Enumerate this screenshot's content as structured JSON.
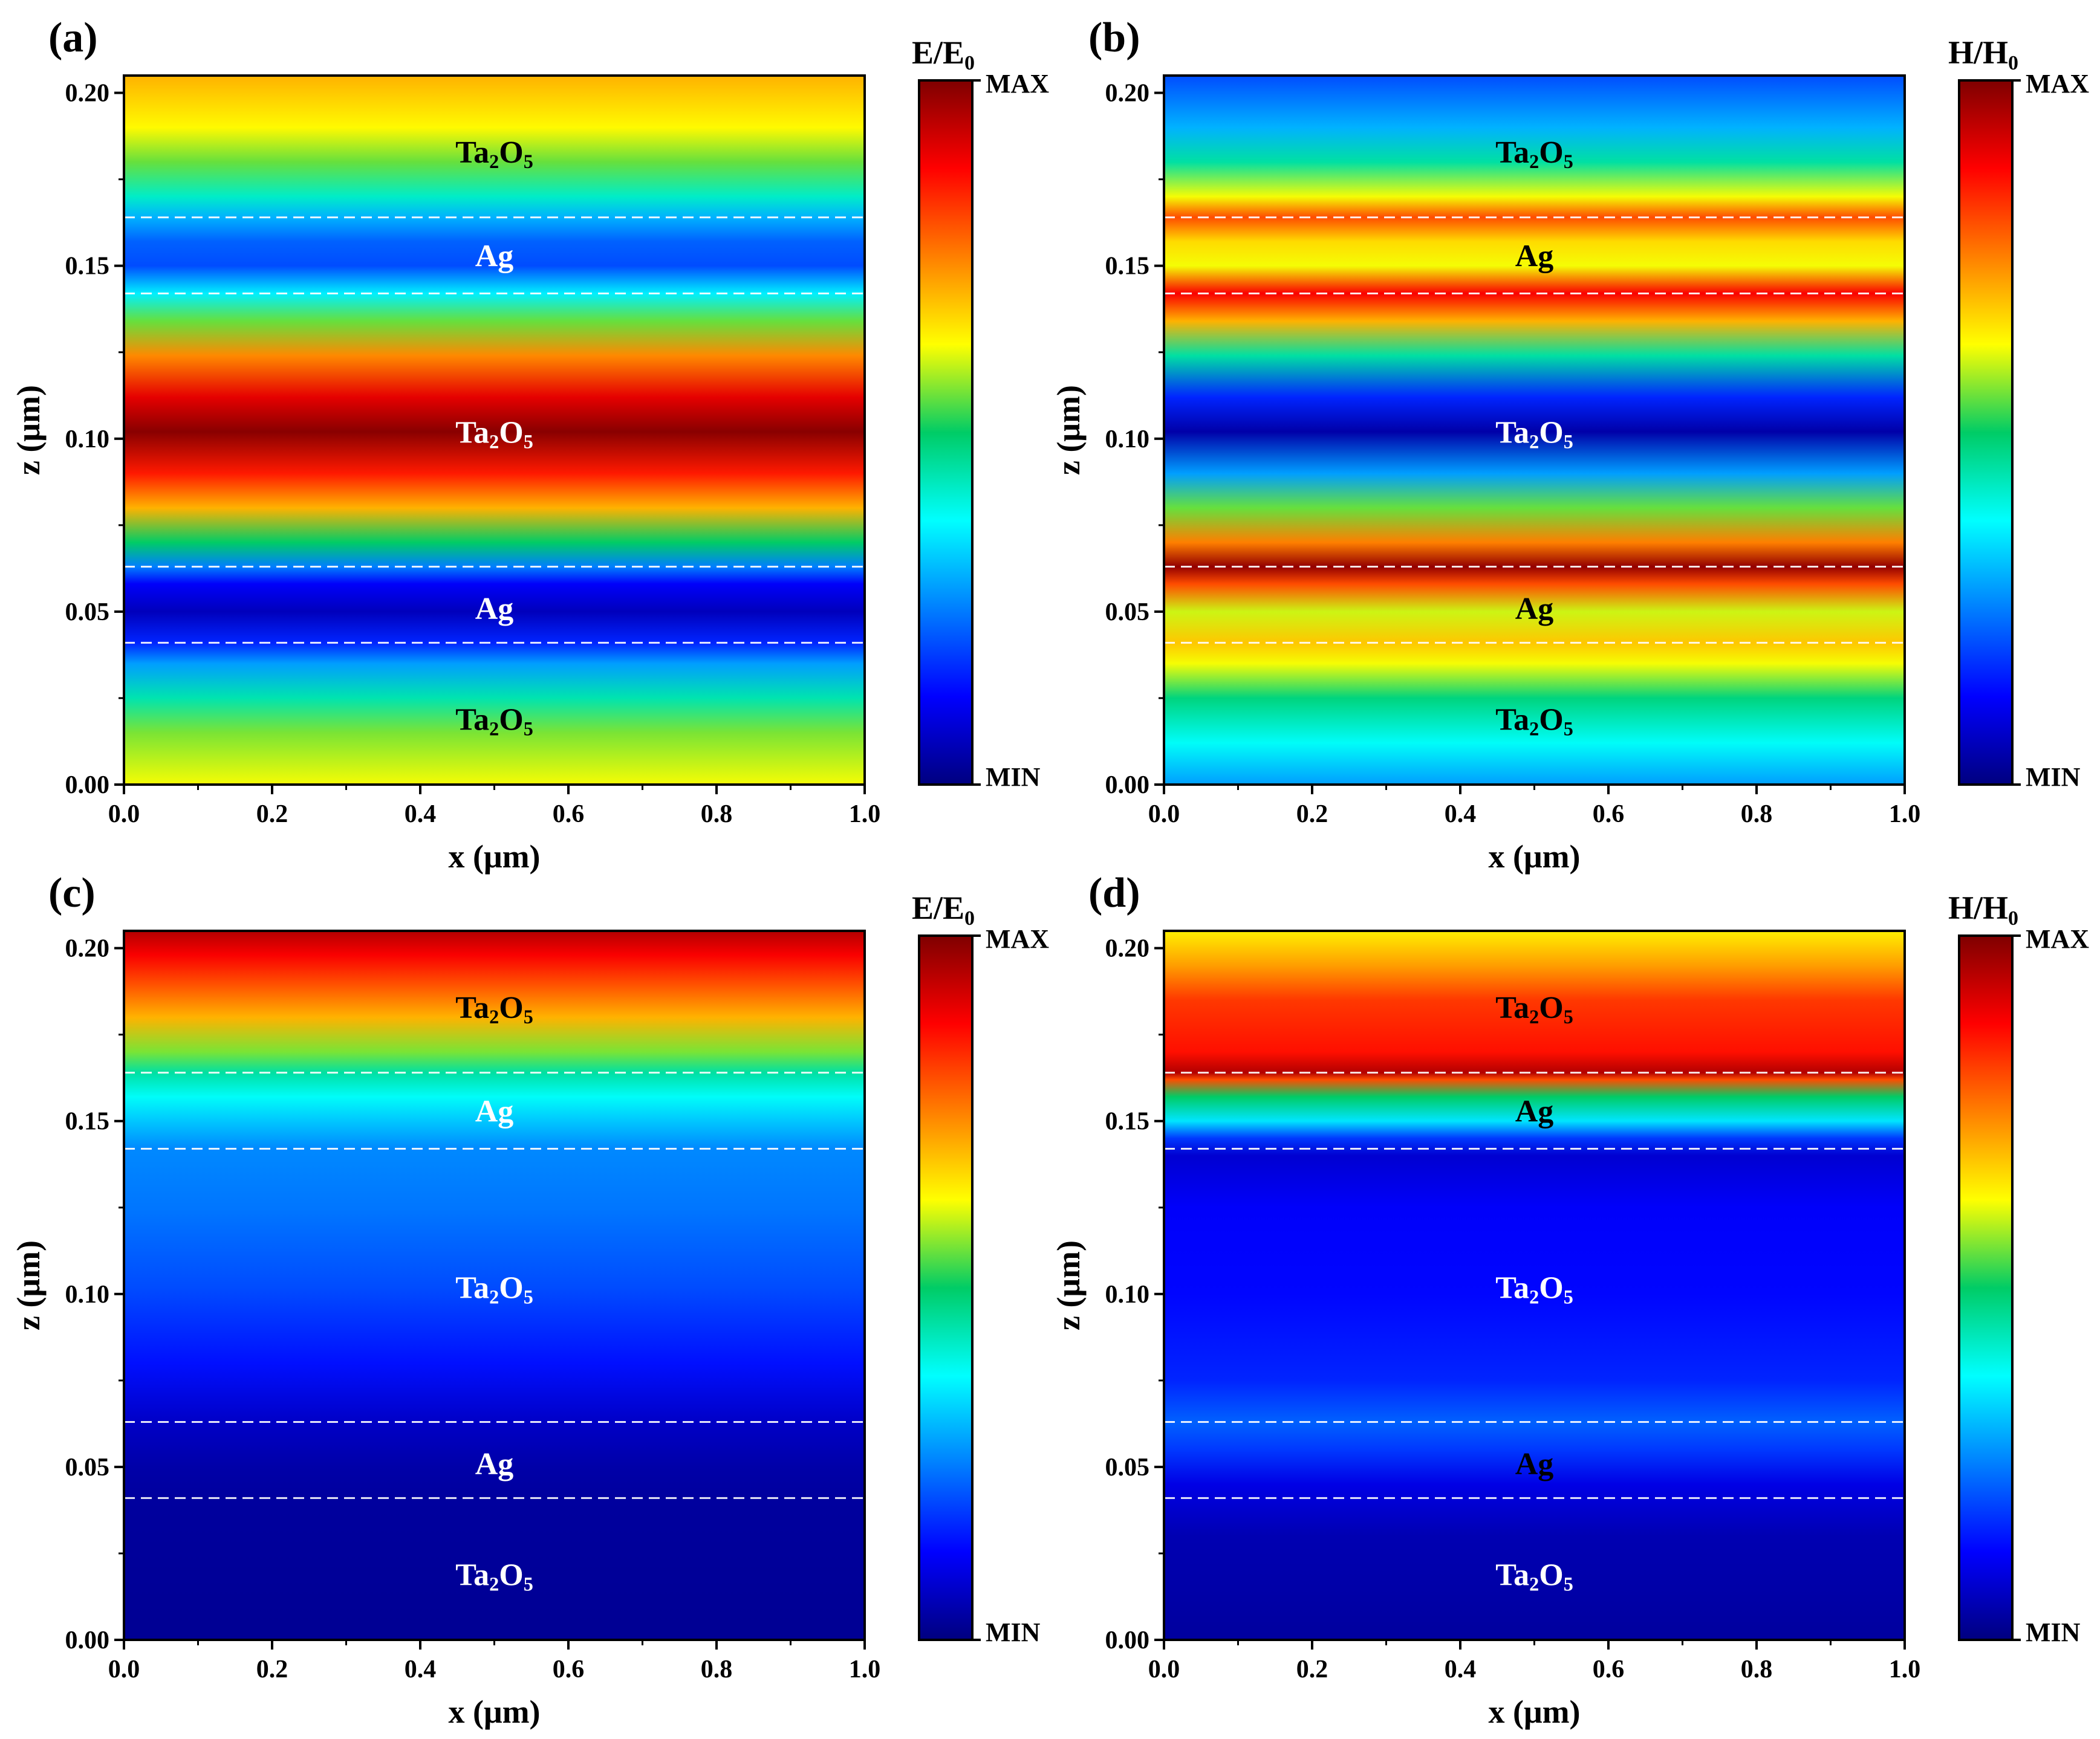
{
  "colormap": {
    "stops": [
      "#00007f",
      "#0000ff",
      "#007fff",
      "#00ffff",
      "#00cc66",
      "#ffff00",
      "#ff7f00",
      "#ff0000",
      "#7f0000"
    ],
    "dashed_line_color": "#ffffff",
    "frame_color": "#000000"
  },
  "chart_data": [
    {
      "type": "heatmap",
      "panel_label": "(a)",
      "xlabel": "x (μm)",
      "ylabel": "z (μm)",
      "xlim": [
        0.0,
        1.0
      ],
      "ylim": [
        0.0,
        0.205
      ],
      "x_ticks": [
        "0.0",
        "0.2",
        "0.4",
        "0.6",
        "0.8",
        "1.0"
      ],
      "y_ticks": [
        "0.00",
        "0.05",
        "0.10",
        "0.15",
        "0.20"
      ],
      "colorbar": {
        "base": "E",
        "sub": "0",
        "max_label": "MAX",
        "min_label": "MIN"
      },
      "interfaces_z": [
        0.041,
        0.063,
        0.142,
        0.164
      ],
      "layers": [
        {
          "base": "Ta",
          "sub1": "2",
          "mid": "O",
          "sub2": "5",
          "z": 0.019,
          "color": "#000000"
        },
        {
          "base": "Ag",
          "z": 0.051,
          "color": "#ffffff"
        },
        {
          "base": "Ta",
          "sub1": "2",
          "mid": "O",
          "sub2": "5",
          "z": 0.102,
          "color": "#ffffff"
        },
        {
          "base": "Ta",
          "sub1": "2",
          "mid": "O",
          "sub2": "5",
          "z": 0.183,
          "color": "#000000"
        }
      ],
      "layers_extra": [
        {
          "base": "Ag",
          "z": 0.153,
          "color": "#ffffff"
        }
      ],
      "field_profile": [
        [
          0.0,
          0.62
        ],
        [
          0.015,
          0.56
        ],
        [
          0.025,
          0.44
        ],
        [
          0.035,
          0.28
        ],
        [
          0.041,
          0.16
        ],
        [
          0.05,
          0.06
        ],
        [
          0.058,
          0.12
        ],
        [
          0.063,
          0.25
        ],
        [
          0.07,
          0.5
        ],
        [
          0.08,
          0.7
        ],
        [
          0.09,
          0.85
        ],
        [
          0.102,
          0.99
        ],
        [
          0.112,
          0.9
        ],
        [
          0.124,
          0.74
        ],
        [
          0.134,
          0.55
        ],
        [
          0.142,
          0.36
        ],
        [
          0.15,
          0.2
        ],
        [
          0.157,
          0.22
        ],
        [
          0.164,
          0.3
        ],
        [
          0.17,
          0.42
        ],
        [
          0.18,
          0.55
        ],
        [
          0.19,
          0.63
        ],
        [
          0.205,
          0.7
        ]
      ]
    },
    {
      "type": "heatmap",
      "panel_label": "(b)",
      "xlabel": "x (μm)",
      "ylabel": "z (μm)",
      "xlim": [
        0.0,
        1.0
      ],
      "ylim": [
        0.0,
        0.205
      ],
      "x_ticks": [
        "0.0",
        "0.2",
        "0.4",
        "0.6",
        "0.8",
        "1.0"
      ],
      "y_ticks": [
        "0.00",
        "0.05",
        "0.10",
        "0.15",
        "0.20"
      ],
      "colorbar": {
        "base": "H",
        "sub": "0",
        "max_label": "MAX",
        "min_label": "MIN"
      },
      "interfaces_z": [
        0.041,
        0.063,
        0.142,
        0.164
      ],
      "layers": [
        {
          "base": "Ta",
          "sub1": "2",
          "mid": "O",
          "sub2": "5",
          "z": 0.019,
          "color": "#000000"
        },
        {
          "base": "Ag",
          "z": 0.051,
          "color": "#000000"
        },
        {
          "base": "Ta",
          "sub1": "2",
          "mid": "O",
          "sub2": "5",
          "z": 0.102,
          "color": "#ffffff"
        },
        {
          "base": "Ta",
          "sub1": "2",
          "mid": "O",
          "sub2": "5",
          "z": 0.183,
          "color": "#000000"
        }
      ],
      "layers_extra": [
        {
          "base": "Ag",
          "z": 0.153,
          "color": "#000000"
        }
      ],
      "field_profile": [
        [
          0.0,
          0.28
        ],
        [
          0.012,
          0.38
        ],
        [
          0.025,
          0.48
        ],
        [
          0.035,
          0.62
        ],
        [
          0.041,
          0.68
        ],
        [
          0.05,
          0.6
        ],
        [
          0.058,
          0.8
        ],
        [
          0.063,
          0.98
        ],
        [
          0.07,
          0.75
        ],
        [
          0.08,
          0.55
        ],
        [
          0.09,
          0.28
        ],
        [
          0.102,
          0.04
        ],
        [
          0.112,
          0.16
        ],
        [
          0.124,
          0.45
        ],
        [
          0.134,
          0.7
        ],
        [
          0.142,
          0.88
        ],
        [
          0.15,
          0.62
        ],
        [
          0.157,
          0.66
        ],
        [
          0.164,
          0.8
        ],
        [
          0.17,
          0.62
        ],
        [
          0.18,
          0.45
        ],
        [
          0.19,
          0.3
        ],
        [
          0.205,
          0.2
        ]
      ]
    },
    {
      "type": "heatmap",
      "panel_label": "(c)",
      "xlabel": "x (μm)",
      "ylabel": "z (μm)",
      "xlim": [
        0.0,
        1.0
      ],
      "ylim": [
        0.0,
        0.205
      ],
      "x_ticks": [
        "0.0",
        "0.2",
        "0.4",
        "0.6",
        "0.8",
        "1.0"
      ],
      "y_ticks": [
        "0.00",
        "0.05",
        "0.10",
        "0.15",
        "0.20"
      ],
      "colorbar": {
        "base": "E",
        "sub": "0",
        "max_label": "MAX",
        "min_label": "MIN"
      },
      "interfaces_z": [
        0.041,
        0.063,
        0.142,
        0.164
      ],
      "layers": [
        {
          "base": "Ta",
          "sub1": "2",
          "mid": "O",
          "sub2": "5",
          "z": 0.019,
          "color": "#ffffff"
        },
        {
          "base": "Ag",
          "z": 0.051,
          "color": "#ffffff"
        },
        {
          "base": "Ta",
          "sub1": "2",
          "mid": "O",
          "sub2": "5",
          "z": 0.102,
          "color": "#ffffff"
        },
        {
          "base": "Ta",
          "sub1": "2",
          "mid": "O",
          "sub2": "5",
          "z": 0.183,
          "color": "#000000"
        }
      ],
      "layers_extra": [
        {
          "base": "Ag",
          "z": 0.153,
          "color": "#ffffff"
        }
      ],
      "field_profile": [
        [
          0.0,
          0.02
        ],
        [
          0.041,
          0.03
        ],
        [
          0.05,
          0.04
        ],
        [
          0.063,
          0.07
        ],
        [
          0.08,
          0.14
        ],
        [
          0.102,
          0.2
        ],
        [
          0.124,
          0.24
        ],
        [
          0.142,
          0.26
        ],
        [
          0.15,
          0.32
        ],
        [
          0.157,
          0.38
        ],
        [
          0.164,
          0.45
        ],
        [
          0.17,
          0.56
        ],
        [
          0.18,
          0.7
        ],
        [
          0.19,
          0.8
        ],
        [
          0.198,
          0.88
        ],
        [
          0.205,
          0.95
        ]
      ]
    },
    {
      "type": "heatmap",
      "panel_label": "(d)",
      "xlabel": "x (μm)",
      "ylabel": "z (μm)",
      "xlim": [
        0.0,
        1.0
      ],
      "ylim": [
        0.0,
        0.205
      ],
      "x_ticks": [
        "0.0",
        "0.2",
        "0.4",
        "0.6",
        "0.8",
        "1.0"
      ],
      "y_ticks": [
        "0.00",
        "0.05",
        "0.10",
        "0.15",
        "0.20"
      ],
      "colorbar": {
        "base": "H",
        "sub": "0",
        "max_label": "MAX",
        "min_label": "MIN"
      },
      "interfaces_z": [
        0.041,
        0.063,
        0.142,
        0.164
      ],
      "layers": [
        {
          "base": "Ta",
          "sub1": "2",
          "mid": "O",
          "sub2": "5",
          "z": 0.019,
          "color": "#ffffff"
        },
        {
          "base": "Ag",
          "z": 0.051,
          "color": "#000000"
        },
        {
          "base": "Ta",
          "sub1": "2",
          "mid": "O",
          "sub2": "5",
          "z": 0.102,
          "color": "#ffffff"
        },
        {
          "base": "Ta",
          "sub1": "2",
          "mid": "O",
          "sub2": "5",
          "z": 0.183,
          "color": "#000000"
        }
      ],
      "layers_extra": [
        {
          "base": "Ag",
          "z": 0.153,
          "color": "#000000"
        }
      ],
      "field_profile": [
        [
          0.0,
          0.03
        ],
        [
          0.03,
          0.05
        ],
        [
          0.045,
          0.1
        ],
        [
          0.055,
          0.18
        ],
        [
          0.063,
          0.22
        ],
        [
          0.075,
          0.16
        ],
        [
          0.1,
          0.13
        ],
        [
          0.125,
          0.12
        ],
        [
          0.14,
          0.08
        ],
        [
          0.145,
          0.18
        ],
        [
          0.15,
          0.35
        ],
        [
          0.157,
          0.5
        ],
        [
          0.162,
          0.8
        ],
        [
          0.164,
          0.95
        ],
        [
          0.17,
          0.86
        ],
        [
          0.185,
          0.82
        ],
        [
          0.195,
          0.72
        ],
        [
          0.205,
          0.64
        ]
      ]
    }
  ]
}
